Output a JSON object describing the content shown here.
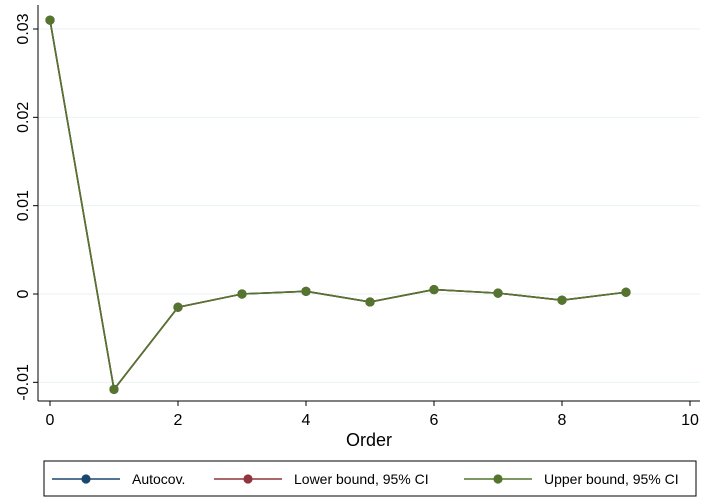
{
  "chart_data": {
    "type": "line",
    "title": "",
    "xlabel": "Order",
    "ylabel": "",
    "x": [
      0,
      1,
      2,
      3,
      4,
      5,
      6,
      7,
      8,
      9
    ],
    "xlim": [
      0,
      10
    ],
    "ylim": [
      -0.011,
      0.031
    ],
    "xticks": [
      0,
      2,
      4,
      6,
      8,
      10
    ],
    "xtick_labels": [
      "0",
      "2",
      "4",
      "6",
      "8",
      "10"
    ],
    "yticks": [
      -0.01,
      0,
      0.01,
      0.02,
      0.03
    ],
    "ytick_labels": [
      "-0.01",
      "0",
      "0.01",
      "0.02",
      "0.03"
    ],
    "grid": true,
    "legend_position": "bottom",
    "series": [
      {
        "name": "Autocov.",
        "color": "#1a476f",
        "values": [
          0.031,
          -0.0108,
          -0.0015,
          0.0,
          0.0003,
          -0.0009,
          0.0005,
          0.0001,
          -0.0007,
          0.0002
        ]
      },
      {
        "name": "Lower bound, 95% CI",
        "color": "#90353b",
        "values": [
          0.031,
          -0.0108,
          -0.0015,
          0.0,
          0.0003,
          -0.0009,
          0.0005,
          0.0001,
          -0.0007,
          0.0002
        ]
      },
      {
        "name": "Upper bound, 95% CI",
        "color": "#55752f",
        "values": [
          0.031,
          -0.0108,
          -0.0015,
          0.0,
          0.0003,
          -0.0009,
          0.0005,
          0.0001,
          -0.0007,
          0.0002
        ]
      }
    ]
  }
}
